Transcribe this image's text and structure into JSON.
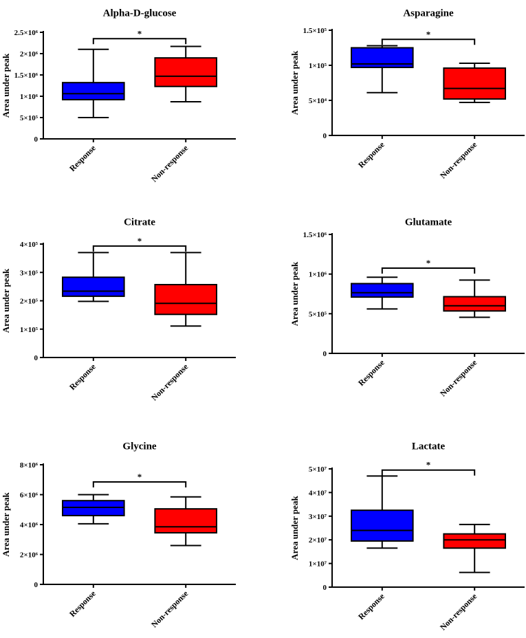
{
  "colors": {
    "response": "#0000ff",
    "non_response": "#ff0000",
    "ink": "#000000"
  },
  "chart_data": [
    {
      "type": "boxplot",
      "title": "Alpha-D-glucose",
      "ylabel": "Area under peak",
      "categories": [
        "Response",
        "Non-response"
      ],
      "ylim": [
        0,
        2500000
      ],
      "yticks": [
        {
          "value": 0,
          "label": "0"
        },
        {
          "value": 500000,
          "label": "5×10⁵"
        },
        {
          "value": 1000000,
          "label": "1×10⁶"
        },
        {
          "value": 1500000,
          "label": "1.5×10⁶"
        },
        {
          "value": 2000000,
          "label": "2×10⁶"
        },
        {
          "value": 2500000,
          "label": "2.5×10⁶"
        }
      ],
      "boxes": [
        {
          "name": "Response",
          "min": 500000,
          "q1": 920000,
          "median": 1060000,
          "q3": 1320000,
          "max": 2100000
        },
        {
          "name": "Non-response",
          "min": 870000,
          "q1": 1230000,
          "median": 1470000,
          "q3": 1900000,
          "max": 2170000
        }
      ],
      "significance": {
        "label": "*",
        "level": 2350000
      }
    },
    {
      "type": "boxplot",
      "title": "Asparagine",
      "ylabel": "Area under peak",
      "categories": [
        "Response",
        "Non-response"
      ],
      "ylim": [
        0,
        150000
      ],
      "yticks": [
        {
          "value": 0,
          "label": "0"
        },
        {
          "value": 50000,
          "label": "5×10⁴"
        },
        {
          "value": 100000,
          "label": "1×10⁵"
        },
        {
          "value": 150000,
          "label": "1.5×10⁵"
        }
      ],
      "boxes": [
        {
          "name": "Response",
          "min": 61000,
          "q1": 97000,
          "median": 102000,
          "q3": 125000,
          "max": 128000
        },
        {
          "name": "Non-response",
          "min": 47000,
          "q1": 52000,
          "median": 67000,
          "q3": 96000,
          "max": 103000
        }
      ],
      "significance": {
        "label": "*",
        "level": 137000
      }
    },
    {
      "type": "boxplot",
      "title": "Citrate",
      "ylabel": "Area under peak",
      "categories": [
        "Response",
        "Non-response"
      ],
      "ylim": [
        0,
        400000
      ],
      "yticks": [
        {
          "value": 0,
          "label": "0"
        },
        {
          "value": 100000,
          "label": "1×10⁵"
        },
        {
          "value": 200000,
          "label": "2×10⁵"
        },
        {
          "value": 300000,
          "label": "3×10⁵"
        },
        {
          "value": 400000,
          "label": "4×10⁵"
        }
      ],
      "boxes": [
        {
          "name": "Response",
          "min": 198000,
          "q1": 216000,
          "median": 234000,
          "q3": 283000,
          "max": 370000
        },
        {
          "name": "Non-response",
          "min": 111000,
          "q1": 152000,
          "median": 191000,
          "q3": 257000,
          "max": 370000
        }
      ],
      "significance": {
        "label": "*",
        "level": 393000
      }
    },
    {
      "type": "boxplot",
      "title": "Glutamate",
      "ylabel": "Area under peak",
      "categories": [
        "Response",
        "Non-response"
      ],
      "ylim": [
        0,
        1500000
      ],
      "yticks": [
        {
          "value": 0,
          "label": "0"
        },
        {
          "value": 500000,
          "label": "5×10⁵"
        },
        {
          "value": 1000000,
          "label": "1×10⁶"
        },
        {
          "value": 1500000,
          "label": "1.5×10⁶"
        }
      ],
      "boxes": [
        {
          "name": "Response",
          "min": 560000,
          "q1": 710000,
          "median": 765000,
          "q3": 880000,
          "max": 960000
        },
        {
          "name": "Non-response",
          "min": 455000,
          "q1": 535000,
          "median": 600000,
          "q3": 715000,
          "max": 925000
        }
      ],
      "significance": {
        "label": "*",
        "level": 1075000
      }
    },
    {
      "type": "boxplot",
      "title": "Glycine",
      "ylabel": "Area under peak",
      "categories": [
        "Response",
        "Non-response"
      ],
      "ylim": [
        0,
        8000000
      ],
      "yticks": [
        {
          "value": 0,
          "label": "0"
        },
        {
          "value": 2000000,
          "label": "2×10⁶"
        },
        {
          "value": 4000000,
          "label": "4×10⁶"
        },
        {
          "value": 6000000,
          "label": "6×10⁶"
        },
        {
          "value": 8000000,
          "label": "8×10⁶"
        }
      ],
      "boxes": [
        {
          "name": "Response",
          "min": 4050000,
          "q1": 4600000,
          "median": 5150000,
          "q3": 5600000,
          "max": 6000000
        },
        {
          "name": "Non-response",
          "min": 2600000,
          "q1": 3450000,
          "median": 3850000,
          "q3": 5050000,
          "max": 5850000
        }
      ],
      "significance": {
        "label": "*",
        "level": 6850000
      }
    },
    {
      "type": "boxplot",
      "title": "Lactate",
      "ylabel": "Area under peak",
      "categories": [
        "Response",
        "Non-response"
      ],
      "ylim": [
        0,
        50000000
      ],
      "yticks": [
        {
          "value": 0,
          "label": "0"
        },
        {
          "value": 10000000,
          "label": "1×10⁷"
        },
        {
          "value": 20000000,
          "label": "2×10⁷"
        },
        {
          "value": 30000000,
          "label": "3×10⁷"
        },
        {
          "value": 40000000,
          "label": "4×10⁷"
        },
        {
          "value": 50000000,
          "label": "5×10⁷"
        }
      ],
      "boxes": [
        {
          "name": "Response",
          "min": 16500000,
          "q1": 19500000,
          "median": 24000000,
          "q3": 32500000,
          "max": 47000000
        },
        {
          "name": "Non-response",
          "min": 6200000,
          "q1": 16500000,
          "median": 20000000,
          "q3": 22500000,
          "max": 26500000
        }
      ],
      "significance": {
        "label": "*",
        "level": 49500000
      }
    }
  ]
}
